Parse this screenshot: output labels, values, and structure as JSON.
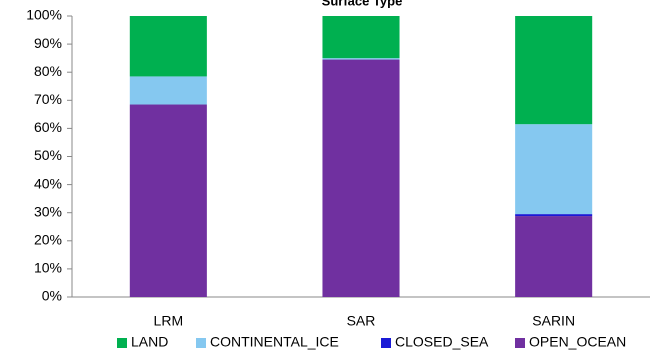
{
  "chart_data": {
    "type": "stacked_bar",
    "title": "Surface Type",
    "categories": [
      "LRM",
      "SAR",
      "SARIN"
    ],
    "series": [
      {
        "name": "LAND",
        "color": "#00b050",
        "values": [
          21.5,
          15,
          38.5
        ]
      },
      {
        "name": "CONTINENTAL_ICE",
        "color": "#85c8f0",
        "values": [
          10,
          0.5,
          32
        ]
      },
      {
        "name": "CLOSED_SEA",
        "color": "#1a1ad6",
        "values": [
          0,
          0,
          0.7
        ]
      },
      {
        "name": "OPEN_OCEAN",
        "color": "#7030a0",
        "values": [
          68.5,
          84.5,
          28.8
        ]
      }
    ],
    "ylim": [
      0,
      100
    ],
    "yticks": [
      {
        "value": 0,
        "label": "0%"
      },
      {
        "value": 10,
        "label": "10%"
      },
      {
        "value": 20,
        "label": "20%"
      },
      {
        "value": 30,
        "label": "30%"
      },
      {
        "value": 40,
        "label": "40%"
      },
      {
        "value": 50,
        "label": "50%"
      },
      {
        "value": 60,
        "label": "60%"
      },
      {
        "value": 70,
        "label": "70%"
      },
      {
        "value": 80,
        "label": "80%"
      },
      {
        "value": 90,
        "label": "90%"
      },
      {
        "value": 100,
        "label": "100%"
      }
    ],
    "grid": false,
    "legend": "bottom"
  }
}
